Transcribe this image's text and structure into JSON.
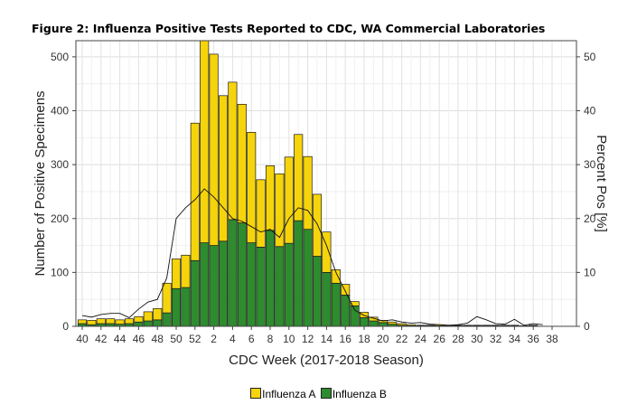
{
  "title": "Figure 2: Influenza Positive Tests Reported to CDC, WA Commercial Laboratories",
  "chart_data": {
    "type": "bar",
    "stacked": true,
    "xlabel": "CDC Week (2017-2018 Season)",
    "ylabel": "Number of Positive Specimens",
    "y2label": "Percent Pos [%]",
    "ylim": [
      0,
      530
    ],
    "y2lim": [
      0,
      53
    ],
    "yticks": [
      0,
      100,
      200,
      300,
      400,
      500
    ],
    "y2ticks": [
      0,
      10,
      20,
      30,
      40,
      50
    ],
    "grid": true,
    "legend_position": "bottom",
    "xtick_labels": [
      "40",
      "42",
      "44",
      "46",
      "48",
      "50",
      "52",
      "2",
      "4",
      "6",
      "8",
      "10",
      "12",
      "14",
      "16",
      "18",
      "20",
      "22",
      "24",
      "26",
      "28",
      "30",
      "32",
      "34",
      "36",
      "38"
    ],
    "categories": [
      "40",
      "41",
      "42",
      "43",
      "44",
      "45",
      "46",
      "47",
      "48",
      "49",
      "50",
      "51",
      "52",
      "1",
      "2",
      "3",
      "4",
      "5",
      "6",
      "7",
      "8",
      "9",
      "10",
      "11",
      "12",
      "13",
      "14",
      "15",
      "16",
      "17",
      "18",
      "19",
      "20",
      "21",
      "22",
      "23",
      "24",
      "25",
      "26",
      "27",
      "28",
      "29",
      "30",
      "31",
      "32",
      "33",
      "34",
      "35",
      "36",
      "37"
    ],
    "series": [
      {
        "name": "Influenza A",
        "color": "#F5D40B",
        "values": [
          7,
          8,
          9,
          9,
          8,
          9,
          10,
          17,
          21,
          55,
          55,
          60,
          255,
          375,
          355,
          270,
          255,
          220,
          205,
          125,
          120,
          135,
          160,
          160,
          135,
          115,
          75,
          25,
          20,
          8,
          10,
          7,
          4,
          4,
          3,
          2,
          1,
          1,
          2,
          1,
          1,
          1,
          1,
          1,
          1,
          1,
          1,
          0,
          1,
          0
        ]
      },
      {
        "name": "Influenza B",
        "color": "#2E8B2E",
        "values": [
          5,
          3,
          5,
          5,
          4,
          5,
          8,
          10,
          12,
          25,
          70,
          72,
          122,
          155,
          150,
          158,
          198,
          192,
          155,
          147,
          178,
          148,
          154,
          196,
          180,
          130,
          100,
          80,
          58,
          38,
          16,
          10,
          7,
          4,
          2,
          1,
          1,
          1,
          1,
          1,
          1,
          1,
          1,
          1,
          1,
          1,
          1,
          1,
          1,
          0
        ]
      },
      {
        "name": "Percent Pos",
        "color": "#111111",
        "values": [
          2,
          1.7,
          2.2,
          2.4,
          2.4,
          1.6,
          3.2,
          4.5,
          5,
          9,
          20,
          22,
          23.5,
          25.5,
          24,
          22,
          20,
          19.5,
          18.5,
          17.5,
          18,
          16.5,
          20,
          22,
          21.5,
          19,
          15,
          10,
          6.5,
          3,
          2,
          1.5,
          1,
          1.2,
          0.8,
          0.6,
          0.7,
          0.4,
          0.3,
          0.2,
          0.3,
          0.6,
          1.8,
          1.2,
          0.5,
          0.4,
          1.3,
          0.2,
          0.5,
          0.3
        ]
      }
    ]
  }
}
